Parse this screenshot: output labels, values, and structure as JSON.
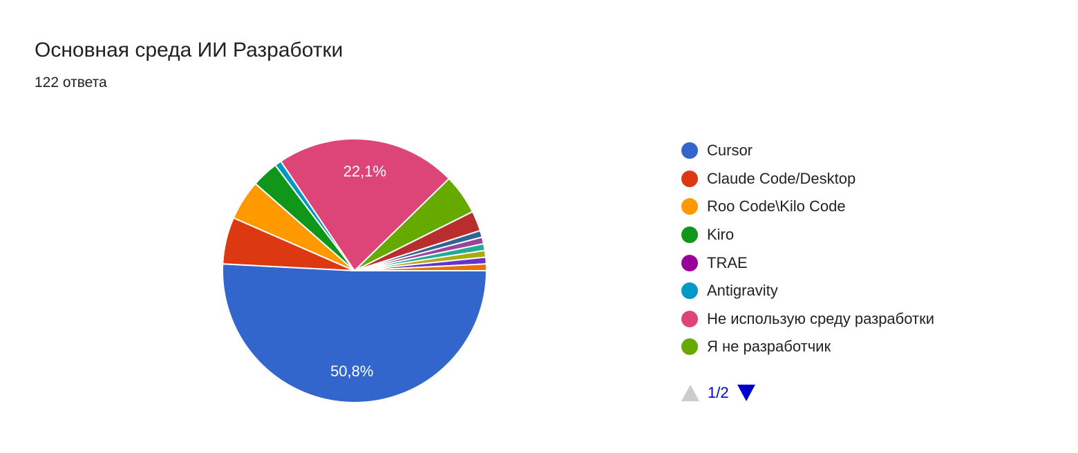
{
  "header": {
    "title": "Основная среда ИИ Разработки",
    "responses": "122 ответа"
  },
  "chart_data": {
    "type": "pie",
    "total": 122,
    "categories": [
      "Cursor",
      "Claude Code/Desktop",
      "Roo Code\\Kilo Code",
      "Kiro",
      "TRAE",
      "Antigravity",
      "Не использую среду разработки",
      "Я не разработчик"
    ],
    "values": [
      62,
      7,
      6,
      4,
      0,
      1,
      27,
      6
    ],
    "unlabeled_values_on_page_2": [
      3,
      1,
      1,
      1,
      1,
      1,
      1
    ],
    "colors": [
      "#3366cc",
      "#dc3912",
      "#ff9900",
      "#109618",
      "#990099",
      "#0099c6",
      "#dd4477",
      "#66aa00",
      "#b82e2e",
      "#316395",
      "#994499",
      "#22aa99",
      "#aaaa11",
      "#6633cc",
      "#e67300"
    ],
    "data_labels": {
      "0": "50,8%",
      "6": "22,1%"
    },
    "legend_placement": "right",
    "start_angle_deg": 90
  },
  "legend": {
    "page": "1/2"
  }
}
